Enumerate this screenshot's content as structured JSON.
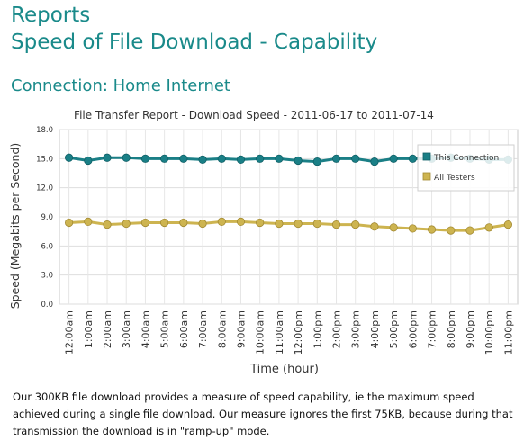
{
  "header": {
    "title_line1": "Reports",
    "title_line2": "Speed of File Download - Capability",
    "connection": "Connection: Home Internet"
  },
  "description": " Our 300KB file download provides a measure of speed capability, ie the maximum speed achieved during a single file download. Our measure ignores the first 75KB, because during that transmission the download is in \"ramp-up\" mode.",
  "colors": {
    "this_connection": "#1a7f86",
    "all_testers": "#cdb450",
    "heading": "#1a8a8a"
  },
  "chart_data": {
    "type": "line",
    "title": "File Transfer Report - Download Speed - 2011-06-17 to 2011-07-14",
    "xlabel": "Time  (hour)",
    "ylabel": "Speed  (Megabits per Second)",
    "ylim": [
      0,
      18
    ],
    "yticks": [
      "0.0",
      "3.0",
      "6.0",
      "9.0",
      "12.0",
      "15.0",
      "18.0"
    ],
    "categories": [
      "12:00am",
      "1:00am",
      "2:00am",
      "3:00am",
      "4:00am",
      "5:00am",
      "6:00am",
      "7:00am",
      "8:00am",
      "9:00am",
      "10:00am",
      "11:00am",
      "12:00pm",
      "1:00pm",
      "2:00pm",
      "3:00pm",
      "4:00pm",
      "5:00pm",
      "6:00pm",
      "7:00pm",
      "8:00pm",
      "9:00pm",
      "10:00pm",
      "11:00pm"
    ],
    "series": [
      {
        "name": "This Connection",
        "values": [
          15.1,
          14.8,
          15.1,
          15.1,
          15.0,
          15.0,
          15.0,
          14.9,
          15.0,
          14.9,
          15.0,
          15.0,
          14.8,
          14.7,
          15.0,
          15.0,
          14.7,
          15.0,
          15.0,
          15.0,
          15.1,
          15.0,
          14.9,
          14.9
        ]
      },
      {
        "name": "All Testers",
        "values": [
          8.4,
          8.5,
          8.2,
          8.3,
          8.4,
          8.4,
          8.4,
          8.3,
          8.5,
          8.5,
          8.4,
          8.3,
          8.3,
          8.3,
          8.2,
          8.2,
          8.0,
          7.9,
          7.8,
          7.7,
          7.6,
          7.6,
          7.9,
          8.2
        ]
      }
    ],
    "legend": "top-right",
    "grid": true
  }
}
